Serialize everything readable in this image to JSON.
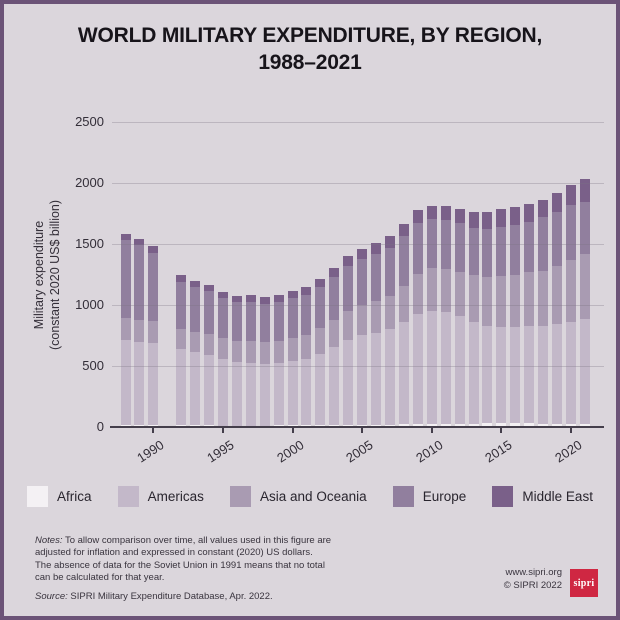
{
  "header": {
    "title_line1": "WORLD MILITARY EXPENDITURE, BY REGION,",
    "title_line2": "1988–2021"
  },
  "chart_data": {
    "type": "bar",
    "stacked": true,
    "title": "WORLD MILITARY EXPENDITURE, BY REGION, 1988–2021",
    "ylabel": "Military expenditure (constant 2020 US$ billion)",
    "ylabel_line1": "Military expenditure",
    "ylabel_line2": "(constant 2020 US$ billion)",
    "ylim": [
      0,
      2500
    ],
    "yticks": [
      0,
      500,
      1000,
      1500,
      2000,
      2500
    ],
    "xticks": [
      1990,
      1995,
      2000,
      2005,
      2010,
      2015,
      2020
    ],
    "grid": "horizontal",
    "legend_position": "bottom",
    "missing_data_note": "No total for 1991 (absence of data for the Soviet Union)",
    "x": [
      1988,
      1989,
      1990,
      1991,
      1992,
      1993,
      1994,
      1995,
      1996,
      1997,
      1998,
      1999,
      2000,
      2001,
      2002,
      2003,
      2004,
      2005,
      2006,
      2007,
      2008,
      2009,
      2010,
      2011,
      2012,
      2013,
      2014,
      2015,
      2016,
      2017,
      2018,
      2019,
      2020,
      2021
    ],
    "series": [
      {
        "name": "Africa",
        "color": "#f4f1f4",
        "values": [
          16,
          16,
          15,
          null,
          14,
          13,
          13,
          12,
          12,
          12,
          12,
          13,
          14,
          15,
          16,
          16,
          17,
          18,
          19,
          20,
          22,
          24,
          25,
          26,
          27,
          28,
          29,
          30,
          29,
          29,
          28,
          28,
          28,
          28
        ]
      },
      {
        "name": "Americas",
        "color": "#c3b8c9",
        "values": [
          700,
          682,
          675,
          null,
          625,
          600,
          580,
          545,
          520,
          515,
          505,
          510,
          525,
          540,
          580,
          640,
          700,
          735,
          755,
          780,
          835,
          905,
          930,
          915,
          880,
          835,
          800,
          790,
          790,
          795,
          800,
          815,
          835,
          855
        ]
      },
      {
        "name": "Asia and Oceania",
        "color": "#a99bb2",
        "values": [
          180,
          180,
          178,
          null,
          165,
          168,
          170,
          172,
          175,
          178,
          180,
          185,
          192,
          200,
          212,
          222,
          232,
          244,
          258,
          274,
          295,
          325,
          345,
          355,
          365,
          380,
          398,
          415,
          430,
          445,
          455,
          475,
          505,
          535
        ]
      },
      {
        "name": "Europe",
        "color": "#917f9e",
        "values": [
          639,
          617,
          557,
          null,
          385,
          365,
          350,
          330,
          316,
          320,
          312,
          315,
          324,
          328,
          342,
          352,
          375,
          380,
          385,
          396,
          412,
          417,
          405,
          400,
          398,
          392,
          400,
          405,
          410,
          415,
          435,
          445,
          450,
          430
        ]
      },
      {
        "name": "Middle East",
        "color": "#7a6089",
        "values": [
          45,
          45,
          55,
          null,
          56,
          54,
          52,
          51,
          52,
          55,
          56,
          57,
          60,
          62,
          65,
          70,
          76,
          83,
          88,
          95,
          101,
          104,
          110,
          114,
          120,
          125,
          138,
          145,
          141,
          141,
          142,
          152,
          167,
          182
        ]
      }
    ]
  },
  "footnotes": {
    "notes_prefix": "Notes:",
    "notes_line1": "To allow comparison over time, all values used in this figure are",
    "notes_line2": "adjusted for inflation and expressed in constant (2020) US dollars.",
    "notes_line3": "The absence of data for the Soviet Union in 1991 means that no total",
    "notes_line4": "can be calculated for that year.",
    "source_prefix": "Source:",
    "source_text": "SIPRI Military Expenditure Database, Apr. 2022."
  },
  "footer": {
    "website": "www.sipri.org",
    "copyright": "© SIPRI 2022",
    "logo_text": "sipri"
  },
  "colors": {
    "background": "#dbd6dc",
    "border": "#6b5377",
    "axis": "#443e4b",
    "logo_red": "#cf2742"
  }
}
